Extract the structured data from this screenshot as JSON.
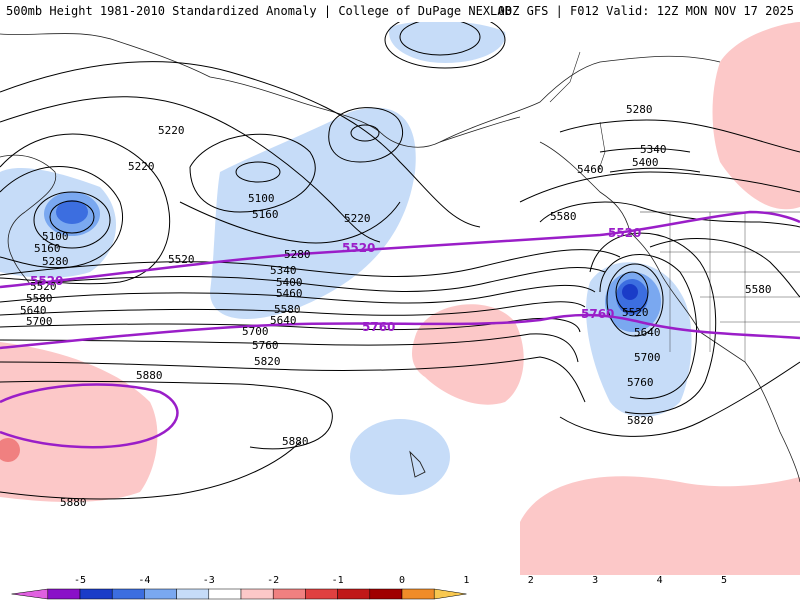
{
  "header": {
    "title_left": "500mb Height 1981-2010 Standardized Anomaly | College of DuPage NEXLAB",
    "title_right": "00Z GFS | F012 Valid: 12Z MON NOV 17 2025"
  },
  "contour_labels": [
    "5220",
    "5220",
    "5100",
    "5160",
    "5280",
    "5520",
    "5100",
    "5160",
    "5220",
    "5280",
    "5340",
    "5400",
    "5460",
    "5520",
    "5580",
    "5640",
    "5700",
    "5580",
    "5640",
    "5700",
    "5760",
    "5820",
    "5880",
    "5880",
    "5880",
    "5280",
    "5340",
    "5400",
    "5460",
    "5580",
    "5520",
    "5640",
    "5700",
    "5760",
    "5820",
    "5580"
  ],
  "highlight_labels": [
    "5520",
    "5520",
    "5520",
    "5760",
    "5760"
  ],
  "legend": {
    "labels": [
      "-5",
      "-4",
      "-3",
      "-2",
      "-1",
      "0",
      "1",
      "2",
      "3",
      "4",
      "5"
    ],
    "colors": [
      "#e060e0",
      "#8a10c8",
      "#1a3cc8",
      "#3c6ee0",
      "#7aa8f0",
      "#c6dcf8",
      "#ffffff",
      "#fcc8c8",
      "#f08080",
      "#e04040",
      "#c01818",
      "#a00000",
      "#f08c28",
      "#f8c850"
    ]
  }
}
